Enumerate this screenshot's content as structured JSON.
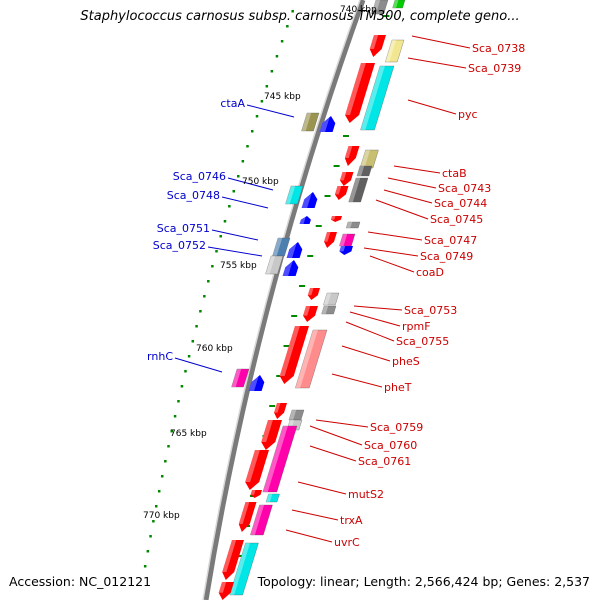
{
  "header": {
    "title": "Staphylococcus carnosus subsp. carnosus TM300, complete geno..."
  },
  "footer": {
    "accession": "Accession: NC_012121",
    "summary": "Topology: linear; Length: 2,566,424 bp; Genes: 2,537"
  },
  "colors": {
    "forward_label": "#0000cc",
    "reverse_label": "#cc0000",
    "backbone": "#808080",
    "tick": "#008800",
    "red": "#ff0000",
    "blue": "#0000ff",
    "olive": "#9a9450",
    "khaki": "#c8bf70",
    "cyan": "#00e5e5",
    "grey": "#8c8c8c",
    "lightgrey": "#c8c8c8",
    "darkgrey": "#606060",
    "magenta": "#ff00aa",
    "steel": "#4a7fb0",
    "salmon": "#ff8c8c",
    "paleyellow": "#f2e690"
  },
  "scale_labels": [
    "740 kbp",
    "745 kbp",
    "750 kbp",
    "755 kbp",
    "760 kbp",
    "765 kbp",
    "770 kbp"
  ],
  "forward_genes": [
    "ctaA",
    "Sca_0746",
    "Sca_0748",
    "Sca_0751",
    "Sca_0752",
    "rnhC"
  ],
  "reverse_genes": [
    "Sca_0738",
    "Sca_0739",
    "pyc",
    "ctaB",
    "Sca_0743",
    "Sca_0744",
    "Sca_0745",
    "Sca_0747",
    "Sca_0749",
    "coaD",
    "Sca_0753",
    "rpmF",
    "Sca_0755",
    "pheS",
    "pheT",
    "Sca_0759",
    "Sca_0760",
    "Sca_0761",
    "mutS2",
    "trxA",
    "uvrC"
  ]
}
